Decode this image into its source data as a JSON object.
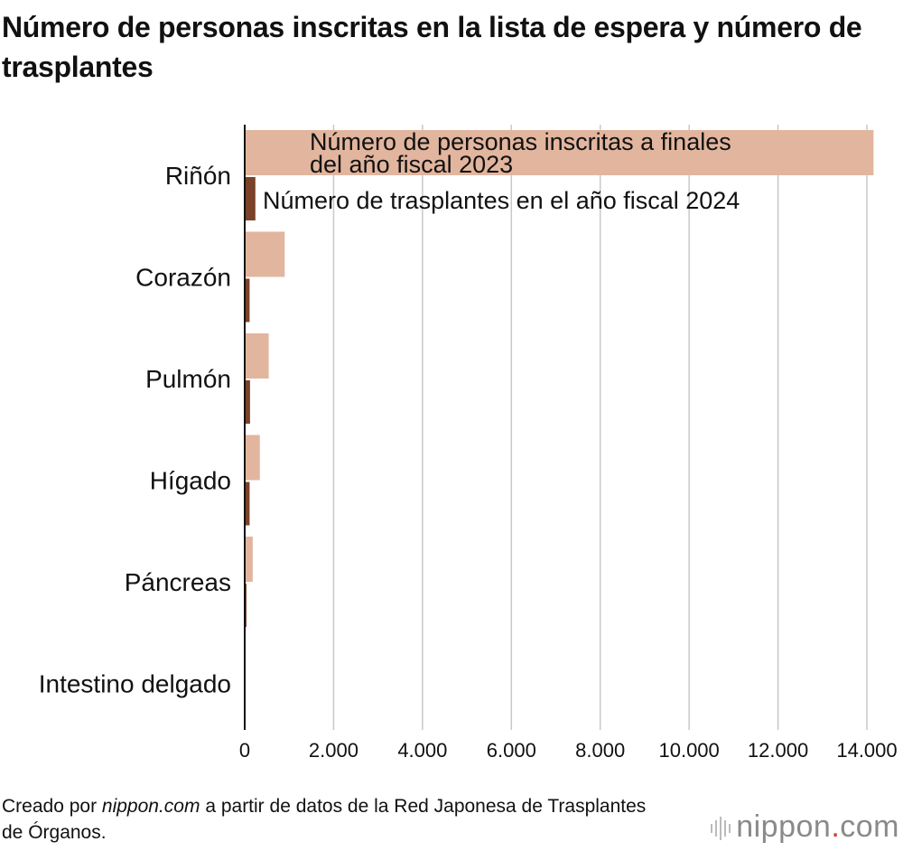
{
  "title": "Número de personas inscritas en la lista de espera y número de trasplantes",
  "chart_data": {
    "type": "bar",
    "orientation": "horizontal",
    "categories": [
      "Riñón",
      "Corazón",
      "Pulmón",
      "Hígado",
      "Páncreas",
      "Intestino delgado"
    ],
    "series": [
      {
        "name": "Número de personas inscritas a finales del año fiscal 2023",
        "label_lines": [
          "Número de personas inscritas a finales",
          "del año fiscal 2023"
        ],
        "values": [
          14150,
          900,
          540,
          340,
          180,
          5
        ],
        "color": "#e2b59e"
      },
      {
        "name": "Número de trasplantes en el año fiscal 2024",
        "label_lines": [
          "Número de trasplantes en el año fiscal 2024"
        ],
        "values": [
          240,
          110,
          120,
          110,
          40,
          2
        ],
        "color": "#7a4228"
      }
    ],
    "xlim": [
      0,
      14000
    ],
    "x_ticks": [
      0,
      2000,
      4000,
      6000,
      8000,
      10000,
      12000,
      14000
    ],
    "x_tick_labels": [
      "0",
      "2.000",
      "4.000",
      "6.000",
      "8.000",
      "10.000",
      "12.000",
      "14.000"
    ],
    "grid": true,
    "legend": "inline labels on first category"
  },
  "source": {
    "prefix": "Creado por ",
    "site": "nippon.com",
    "suffix": " a partir de datos de la Red Japonesa de Trasplantes de Órganos."
  },
  "logo": {
    "name": "nippon",
    "dot": ".",
    "tld": "com"
  }
}
